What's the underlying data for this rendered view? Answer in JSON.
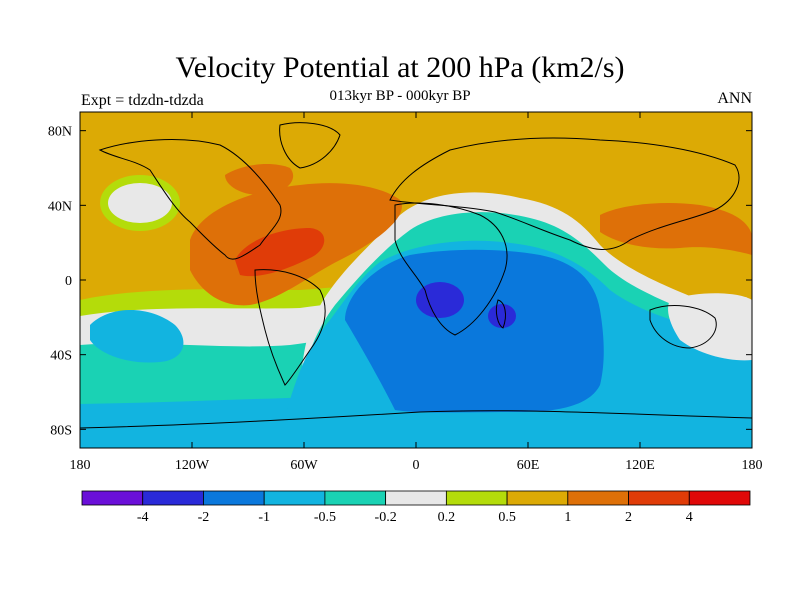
{
  "title": "Velocity Potential at 200 hPa (km2/s)",
  "subtitle": "013kyr BP - 000kyr BP",
  "left_string": "Expt = tdzdn-tdzda",
  "right_string": "ANN",
  "map": {
    "projection": "cylindrical equidistant",
    "lon_range": [
      -180,
      180
    ],
    "lat_range": [
      -90,
      90
    ],
    "lon_ticks": [
      {
        "value": -180,
        "label": "180"
      },
      {
        "value": -120,
        "label": "120W"
      },
      {
        "value": -60,
        "label": "60W"
      },
      {
        "value": 0,
        "label": "0"
      },
      {
        "value": 60,
        "label": "60E"
      },
      {
        "value": 120,
        "label": "120E"
      },
      {
        "value": 180,
        "label": "180"
      }
    ],
    "lat_ticks": [
      {
        "value": 80,
        "label": "80N"
      },
      {
        "value": 40,
        "label": "40N"
      },
      {
        "value": 0,
        "label": "0"
      },
      {
        "value": -40,
        "label": "40S"
      },
      {
        "value": -80,
        "label": "80S"
      }
    ]
  },
  "colorbar": {
    "colors": [
      "#6a0fd8",
      "#2a2ad8",
      "#0a78dc",
      "#12b4e0",
      "#1ad2b4",
      "#e8e8e8",
      "#b4dc0a",
      "#dcaa05",
      "#de7008",
      "#e03c08",
      "#e00808"
    ],
    "labels": [
      "-4",
      "-2",
      "-1",
      "-0.5",
      "-0.2",
      "0.2",
      "0.5",
      "1",
      "2",
      "4"
    ]
  },
  "chart_data": {
    "type": "heatmap",
    "title": "Velocity Potential at 200 hPa (km2/s)",
    "subtitle": "013kyr BP - 000kyr BP",
    "levels": [
      -4,
      -2,
      -1,
      -0.5,
      -0.2,
      0.2,
      0.5,
      1,
      2,
      4
    ],
    "features": [
      {
        "region": "Indian Ocean / Africa / Southern Ocean",
        "range": [
          -2,
          -1
        ]
      },
      {
        "region": "Southern Africa centre near 5E 20S",
        "range": [
          -4,
          -2
        ]
      },
      {
        "region": "Madagascar centre near 50E 20S",
        "range": [
          -4,
          -2
        ]
      },
      {
        "region": "Caribbean / tropical Atlantic near 70W 15N",
        "range": [
          2,
          4
        ]
      },
      {
        "region": "North Pacific near 150W 40N",
        "range": [
          -0.2,
          0.2
        ]
      },
      {
        "region": "Western Pacific near 150E 20S",
        "range": [
          -0.2,
          0.2
        ]
      },
      {
        "region": "Tropical and mid-latitude Pacific",
        "range": [
          0.5,
          1
        ]
      }
    ]
  }
}
